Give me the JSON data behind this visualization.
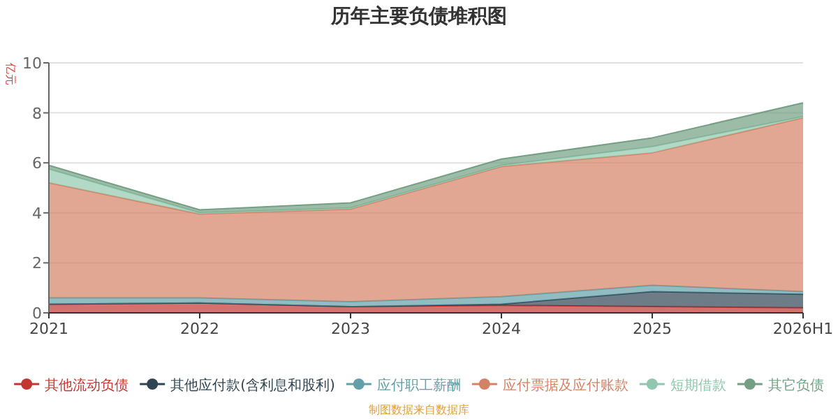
{
  "chart_data": {
    "type": "area",
    "title": "历年主要负债堆积图",
    "ylabel": "亿元",
    "categories": [
      "2021",
      "2022",
      "2023",
      "2024",
      "2025",
      "2026H1"
    ],
    "stacked": true,
    "series": [
      {
        "name": "其他流动负债",
        "color": "#c23531",
        "values": [
          0.35,
          0.4,
          0.25,
          0.3,
          0.25,
          0.2
        ]
      },
      {
        "name": "其他应付款(含利息和股利)",
        "color": "#2f4554",
        "values": [
          0,
          0,
          0,
          0.05,
          0.6,
          0.55
        ]
      },
      {
        "name": "应付职工薪酬",
        "color": "#61a0a8",
        "values": [
          0.25,
          0.2,
          0.2,
          0.3,
          0.25,
          0.1
        ]
      },
      {
        "name": "应付票据及应付账款",
        "color": "#d48265",
        "values": [
          4.6,
          3.35,
          3.7,
          5.2,
          5.3,
          6.95
        ]
      },
      {
        "name": "短期借款",
        "color": "#91c7ae",
        "values": [
          0.55,
          0.05,
          0.05,
          0.05,
          0.25,
          0.05
        ]
      },
      {
        "name": "其它负债",
        "color": "#749f83",
        "values": [
          0.15,
          0.12,
          0.2,
          0.25,
          0.35,
          0.55
        ]
      }
    ],
    "ylim": [
      0,
      10
    ],
    "yticks": [
      0,
      2,
      4,
      6,
      8,
      10
    ],
    "grid": "y",
    "legend": "bottom",
    "annotations": [
      "制图数据来自数据库"
    ]
  }
}
